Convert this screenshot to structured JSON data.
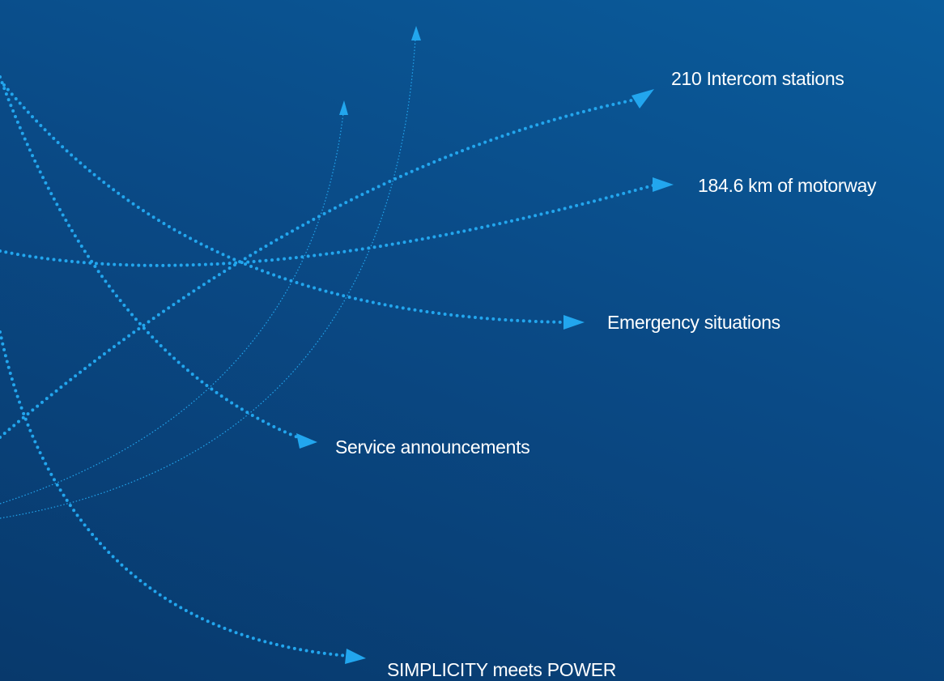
{
  "labels": [
    "210 Intercom stations",
    "184.6 km of motorway",
    "Emergency situations",
    "Service announcements",
    "SIMPLICITY meets POWER"
  ]
}
